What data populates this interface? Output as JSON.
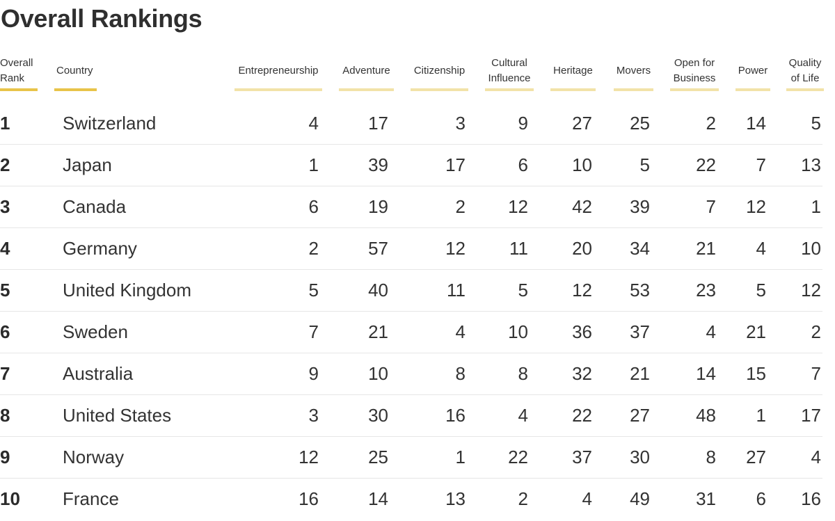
{
  "title": "Overall Rankings",
  "colors": {
    "accent": "#e8c44a",
    "accent_light": "#f2e2a8",
    "divider": "#e6e6e6"
  },
  "chart_data": {
    "type": "table",
    "title": "Overall Rankings",
    "headers": {
      "rank": [
        "Overall",
        "Rank"
      ],
      "country": [
        "Country"
      ],
      "categories": [
        [
          "Entrepreneurship"
        ],
        [
          "Adventure"
        ],
        [
          "Citizenship"
        ],
        [
          "Cultural",
          "Influence"
        ],
        [
          "Heritage"
        ],
        [
          "Movers"
        ],
        [
          "Open for",
          "Business"
        ],
        [
          "Power"
        ],
        [
          "Quality",
          "of Life"
        ]
      ]
    },
    "rows": [
      {
        "rank": "1",
        "country": "Switzerland",
        "values": [
          "4",
          "17",
          "3",
          "9",
          "27",
          "25",
          "2",
          "14",
          "5"
        ]
      },
      {
        "rank": "2",
        "country": "Japan",
        "values": [
          "1",
          "39",
          "17",
          "6",
          "10",
          "5",
          "22",
          "7",
          "13"
        ]
      },
      {
        "rank": "3",
        "country": "Canada",
        "values": [
          "6",
          "19",
          "2",
          "12",
          "42",
          "39",
          "7",
          "12",
          "1"
        ]
      },
      {
        "rank": "4",
        "country": "Germany",
        "values": [
          "2",
          "57",
          "12",
          "11",
          "20",
          "34",
          "21",
          "4",
          "10"
        ]
      },
      {
        "rank": "5",
        "country": "United Kingdom",
        "values": [
          "5",
          "40",
          "11",
          "5",
          "12",
          "53",
          "23",
          "5",
          "12"
        ]
      },
      {
        "rank": "6",
        "country": "Sweden",
        "values": [
          "7",
          "21",
          "4",
          "10",
          "36",
          "37",
          "4",
          "21",
          "2"
        ]
      },
      {
        "rank": "7",
        "country": "Australia",
        "values": [
          "9",
          "10",
          "8",
          "8",
          "32",
          "21",
          "14",
          "15",
          "7"
        ]
      },
      {
        "rank": "8",
        "country": "United States",
        "values": [
          "3",
          "30",
          "16",
          "4",
          "22",
          "27",
          "48",
          "1",
          "17"
        ]
      },
      {
        "rank": "9",
        "country": "Norway",
        "values": [
          "12",
          "25",
          "1",
          "22",
          "37",
          "30",
          "8",
          "27",
          "4"
        ]
      },
      {
        "rank": "10",
        "country": "France",
        "values": [
          "16",
          "14",
          "13",
          "2",
          "4",
          "49",
          "31",
          "6",
          "16"
        ]
      }
    ]
  }
}
